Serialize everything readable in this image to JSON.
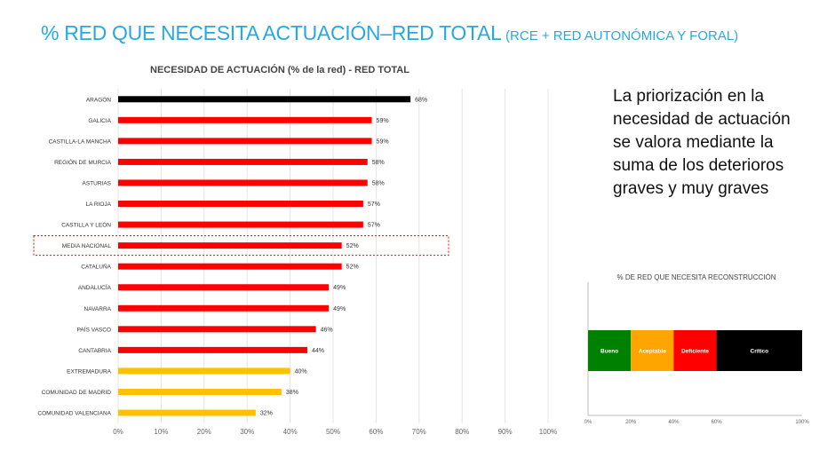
{
  "header": {
    "title_main": "% RED QUE NECESITA ACTUACIÓN–RED TOTAL",
    "title_sub": "(RCE + RED AUTONÓMICA Y FORAL)"
  },
  "explanation": "La priorización en la necesidad de actuación se valora mediante la suma de los deterioros graves y muy graves",
  "colors": {
    "black": "#000000",
    "red": "#ff0000",
    "yellow": "#ffc000",
    "highlight": "#ff0000"
  },
  "chart_data": [
    {
      "type": "bar",
      "orientation": "horizontal",
      "title": "NECESIDAD DE ACTUACIÓN (% de la red)  - RED TOTAL",
      "categories": [
        "ARAGÓN",
        "GALICIA",
        "CASTILLA-LA MANCHA",
        "REGIÓN DE MURCIA",
        "ASTURIAS",
        "LA RIOJA",
        "CASTILLA Y LEÓN",
        "MEDIA NACIONAL",
        "CATALUÑA",
        "ANDALUCÍA",
        "NAVARRA",
        "PAÍS VASCO",
        "CANTABRIA",
        "EXTREMADURA",
        "COMUNIDAD DE MADRID",
        "COMUNIDAD VALENCIANA"
      ],
      "values": [
        68,
        59,
        59,
        58,
        58,
        57,
        57,
        52,
        52,
        49,
        49,
        46,
        44,
        40,
        38,
        32
      ],
      "value_labels": [
        "68%",
        "59%",
        "59%",
        "58%",
        "58%",
        "57%",
        "57%",
        "52%",
        "52%",
        "49%",
        "49%",
        "46%",
        "44%",
        "40%",
        "38%",
        "32%"
      ],
      "bar_colors": [
        "black",
        "red",
        "red",
        "red",
        "red",
        "red",
        "red",
        "red",
        "red",
        "red",
        "red",
        "red",
        "red",
        "yellow",
        "yellow",
        "yellow"
      ],
      "highlighted_category": "MEDIA NACIONAL",
      "xlim": [
        0,
        100
      ],
      "xticks": [
        "0%",
        "10%",
        "20%",
        "30%",
        "40%",
        "50%",
        "60%",
        "70%",
        "80%",
        "90%",
        "100%"
      ],
      "grid": true
    },
    {
      "type": "bar",
      "orientation": "horizontal",
      "stacked": true,
      "title": "% DE RED QUE NECESITA RECONSTRUCCIÓN",
      "segments": [
        {
          "label": "Bueno",
          "from": 0,
          "to": 20,
          "color": "#008000"
        },
        {
          "label": "Aceptable",
          "from": 20,
          "to": 40,
          "color": "#ffa500"
        },
        {
          "label": "Deficiente",
          "from": 40,
          "to": 60,
          "color": "#ff0000"
        },
        {
          "label": "Crítico",
          "from": 60,
          "to": 100,
          "color": "#000000"
        }
      ],
      "xlim": [
        0,
        100
      ],
      "xticks": [
        "0%",
        "20%",
        "40%",
        "60%",
        "100%"
      ],
      "xtick_values": [
        0,
        20,
        40,
        60,
        100
      ]
    }
  ]
}
